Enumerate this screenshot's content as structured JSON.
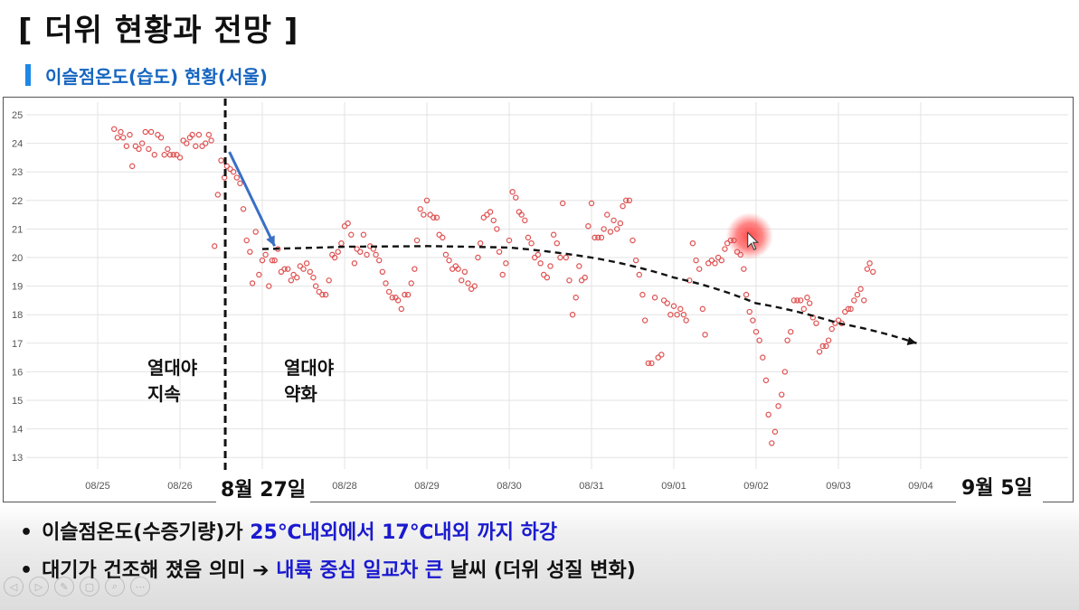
{
  "title": "[ 더위 현황과 전망 ]",
  "subtitle": "이슬점온도(습도) 현황(서울)",
  "chart_data": {
    "type": "scatter",
    "x_ticks": [
      "08/25",
      "08/26",
      "08/27",
      "08/28",
      "08/29",
      "08/30",
      "08/31",
      "09/01",
      "09/02",
      "09/03",
      "09/04"
    ],
    "y_ticks": [
      13,
      14,
      15,
      16,
      17,
      18,
      19,
      20,
      21,
      22,
      23,
      24,
      25
    ],
    "ylim": [
      12.6,
      25.3
    ],
    "xlim": [
      -0.7,
      10.1
    ],
    "grid": true,
    "marker_color": "#e05050",
    "series": [
      {
        "points": [
          [
            0.2,
            24.5
          ],
          [
            0.24,
            24.2
          ],
          [
            0.28,
            24.4
          ],
          [
            0.31,
            24.2
          ],
          [
            0.35,
            23.9
          ],
          [
            0.39,
            24.3
          ],
          [
            0.42,
            23.2
          ],
          [
            0.46,
            23.9
          ],
          [
            0.5,
            23.8
          ],
          [
            0.54,
            24.0
          ],
          [
            0.58,
            24.4
          ],
          [
            0.62,
            23.8
          ],
          [
            0.65,
            24.4
          ],
          [
            0.69,
            23.6
          ],
          [
            0.73,
            24.3
          ],
          [
            0.77,
            24.2
          ],
          [
            0.81,
            23.6
          ],
          [
            0.85,
            23.8
          ],
          [
            0.88,
            23.6
          ],
          [
            0.92,
            23.6
          ],
          [
            0.96,
            23.6
          ],
          [
            1.0,
            23.5
          ],
          [
            1.04,
            24.1
          ],
          [
            1.08,
            24.0
          ],
          [
            1.12,
            24.2
          ],
          [
            1.15,
            24.3
          ],
          [
            1.19,
            23.9
          ],
          [
            1.23,
            24.3
          ],
          [
            1.27,
            23.9
          ],
          [
            1.31,
            24.0
          ],
          [
            1.35,
            24.3
          ],
          [
            1.38,
            24.1
          ],
          [
            1.42,
            20.4
          ],
          [
            1.46,
            22.2
          ],
          [
            1.5,
            23.4
          ],
          [
            1.54,
            22.8
          ],
          [
            1.57,
            23.2
          ],
          [
            1.61,
            23.1
          ],
          [
            1.65,
            23.0
          ],
          [
            1.69,
            22.8
          ],
          [
            1.73,
            22.6
          ],
          [
            1.77,
            21.7
          ],
          [
            1.81,
            20.6
          ],
          [
            1.85,
            20.2
          ],
          [
            1.88,
            19.1
          ],
          [
            1.92,
            20.9
          ],
          [
            1.96,
            19.4
          ],
          [
            2.0,
            19.9
          ],
          [
            2.04,
            20.1
          ],
          [
            2.08,
            19.0
          ],
          [
            2.12,
            19.9
          ],
          [
            2.15,
            19.9
          ],
          [
            2.19,
            20.3
          ],
          [
            2.23,
            19.5
          ],
          [
            2.27,
            19.6
          ],
          [
            2.31,
            19.6
          ],
          [
            2.35,
            19.2
          ],
          [
            2.38,
            19.4
          ],
          [
            2.42,
            19.3
          ],
          [
            2.46,
            19.7
          ],
          [
            2.5,
            19.6
          ],
          [
            2.54,
            19.8
          ],
          [
            2.58,
            19.5
          ],
          [
            2.62,
            19.3
          ],
          [
            2.65,
            19.0
          ],
          [
            2.69,
            18.8
          ],
          [
            2.73,
            18.7
          ],
          [
            2.77,
            18.7
          ],
          [
            2.81,
            19.2
          ],
          [
            2.85,
            20.1
          ],
          [
            2.88,
            20.0
          ],
          [
            2.92,
            20.2
          ],
          [
            2.96,
            20.5
          ],
          [
            3.0,
            21.1
          ],
          [
            3.04,
            21.2
          ],
          [
            3.08,
            20.8
          ],
          [
            3.12,
            19.8
          ],
          [
            3.15,
            20.3
          ],
          [
            3.19,
            20.2
          ],
          [
            3.23,
            20.8
          ],
          [
            3.27,
            20.1
          ],
          [
            3.31,
            20.4
          ],
          [
            3.35,
            20.3
          ],
          [
            3.38,
            20.1
          ],
          [
            3.42,
            19.9
          ],
          [
            3.46,
            19.5
          ],
          [
            3.5,
            19.1
          ],
          [
            3.54,
            18.8
          ],
          [
            3.58,
            18.6
          ],
          [
            3.62,
            18.6
          ],
          [
            3.65,
            18.5
          ],
          [
            3.69,
            18.2
          ],
          [
            3.73,
            18.7
          ],
          [
            3.77,
            18.7
          ],
          [
            3.81,
            19.1
          ],
          [
            3.85,
            19.6
          ],
          [
            3.88,
            20.6
          ],
          [
            3.92,
            21.7
          ],
          [
            3.96,
            21.5
          ],
          [
            4.0,
            22.0
          ],
          [
            4.04,
            21.5
          ],
          [
            4.08,
            21.4
          ],
          [
            4.12,
            21.4
          ],
          [
            4.15,
            20.8
          ],
          [
            4.19,
            20.7
          ],
          [
            4.23,
            20.1
          ],
          [
            4.27,
            19.9
          ],
          [
            4.31,
            19.6
          ],
          [
            4.35,
            19.7
          ],
          [
            4.38,
            19.6
          ],
          [
            4.42,
            19.2
          ],
          [
            4.46,
            19.5
          ],
          [
            4.5,
            19.1
          ],
          [
            4.54,
            18.9
          ],
          [
            4.58,
            19.0
          ],
          [
            4.62,
            20.0
          ],
          [
            4.65,
            20.5
          ],
          [
            4.69,
            21.4
          ],
          [
            4.73,
            21.5
          ],
          [
            4.77,
            21.6
          ],
          [
            4.81,
            21.3
          ],
          [
            4.85,
            21.0
          ],
          [
            4.88,
            20.2
          ],
          [
            4.92,
            19.4
          ],
          [
            4.96,
            19.8
          ],
          [
            5.0,
            20.6
          ],
          [
            5.04,
            22.3
          ],
          [
            5.08,
            22.1
          ],
          [
            5.12,
            21.6
          ],
          [
            5.15,
            21.5
          ],
          [
            5.19,
            21.3
          ],
          [
            5.23,
            20.7
          ],
          [
            5.27,
            20.5
          ],
          [
            5.31,
            20.0
          ],
          [
            5.35,
            20.1
          ],
          [
            5.38,
            19.8
          ],
          [
            5.42,
            19.4
          ],
          [
            5.46,
            19.3
          ],
          [
            5.5,
            19.7
          ],
          [
            5.54,
            20.8
          ],
          [
            5.58,
            20.5
          ],
          [
            5.62,
            20.0
          ],
          [
            5.65,
            21.9
          ],
          [
            5.69,
            20.0
          ],
          [
            5.73,
            19.2
          ],
          [
            5.77,
            18.0
          ],
          [
            5.81,
            18.6
          ],
          [
            5.85,
            19.7
          ],
          [
            5.88,
            19.2
          ],
          [
            5.92,
            19.3
          ],
          [
            5.96,
            21.1
          ],
          [
            6.0,
            21.9
          ],
          [
            6.04,
            20.7
          ],
          [
            6.08,
            20.7
          ],
          [
            6.12,
            20.7
          ],
          [
            6.15,
            21.0
          ],
          [
            6.19,
            21.5
          ],
          [
            6.23,
            20.9
          ],
          [
            6.27,
            21.3
          ],
          [
            6.31,
            21.0
          ],
          [
            6.35,
            21.2
          ],
          [
            6.38,
            21.8
          ],
          [
            6.42,
            22.0
          ],
          [
            6.46,
            22.0
          ],
          [
            6.5,
            20.6
          ],
          [
            6.54,
            19.9
          ],
          [
            6.58,
            19.4
          ],
          [
            6.62,
            18.7
          ],
          [
            6.65,
            17.8
          ],
          [
            6.69,
            16.3
          ],
          [
            6.73,
            16.3
          ],
          [
            6.77,
            18.6
          ],
          [
            6.81,
            16.5
          ],
          [
            6.85,
            16.6
          ],
          [
            6.88,
            18.5
          ],
          [
            6.92,
            18.4
          ],
          [
            6.96,
            18.0
          ],
          [
            7.0,
            18.3
          ],
          [
            7.04,
            18.0
          ],
          [
            7.08,
            18.2
          ],
          [
            7.12,
            18.0
          ],
          [
            7.15,
            17.8
          ],
          [
            7.19,
            19.2
          ],
          [
            7.23,
            20.5
          ],
          [
            7.27,
            19.9
          ],
          [
            7.31,
            19.6
          ],
          [
            7.35,
            18.2
          ],
          [
            7.38,
            17.3
          ],
          [
            7.42,
            19.8
          ],
          [
            7.46,
            19.9
          ],
          [
            7.5,
            19.8
          ],
          [
            7.54,
            20.0
          ],
          [
            7.58,
            19.9
          ],
          [
            7.62,
            20.3
          ],
          [
            7.65,
            20.5
          ],
          [
            7.69,
            20.6
          ],
          [
            7.73,
            20.6
          ],
          [
            7.77,
            20.2
          ],
          [
            7.81,
            20.1
          ],
          [
            7.85,
            19.6
          ],
          [
            7.88,
            18.7
          ],
          [
            7.92,
            18.1
          ],
          [
            7.96,
            17.8
          ],
          [
            8.0,
            17.4
          ],
          [
            8.04,
            17.1
          ],
          [
            8.08,
            16.5
          ],
          [
            8.12,
            15.7
          ],
          [
            8.15,
            14.5
          ],
          [
            8.19,
            13.5
          ],
          [
            8.23,
            13.9
          ],
          [
            8.27,
            14.8
          ],
          [
            8.31,
            15.2
          ],
          [
            8.35,
            16.0
          ],
          [
            8.38,
            17.1
          ],
          [
            8.42,
            17.4
          ],
          [
            8.46,
            18.5
          ],
          [
            8.5,
            18.5
          ],
          [
            8.54,
            18.5
          ],
          [
            8.58,
            18.2
          ],
          [
            8.62,
            18.6
          ],
          [
            8.65,
            18.4
          ],
          [
            8.69,
            17.9
          ],
          [
            8.73,
            17.7
          ],
          [
            8.77,
            16.7
          ],
          [
            8.81,
            16.9
          ],
          [
            8.85,
            16.9
          ],
          [
            8.88,
            17.1
          ],
          [
            8.92,
            17.5
          ],
          [
            8.96,
            17.7
          ],
          [
            9.0,
            17.8
          ],
          [
            9.04,
            17.7
          ],
          [
            9.08,
            18.1
          ],
          [
            9.12,
            18.2
          ],
          [
            9.15,
            18.2
          ],
          [
            9.19,
            18.5
          ],
          [
            9.23,
            18.7
          ],
          [
            9.27,
            18.9
          ],
          [
            9.31,
            18.5
          ],
          [
            9.35,
            19.6
          ],
          [
            9.38,
            19.8
          ],
          [
            9.42,
            19.5
          ]
        ]
      }
    ],
    "trend": {
      "type": "dashed-curve-arrow",
      "points": [
        [
          2.0,
          20.3
        ],
        [
          3.0,
          20.38
        ],
        [
          4.0,
          20.4
        ],
        [
          5.0,
          20.35
        ],
        [
          6.0,
          20.0
        ],
        [
          7.0,
          19.3
        ],
        [
          8.0,
          18.4
        ],
        [
          9.0,
          17.7
        ],
        [
          9.95,
          17.0
        ]
      ]
    },
    "separator_x": 1.55,
    "arrow": {
      "from": [
        1.6,
        23.7
      ],
      "to": [
        2.15,
        20.4
      ]
    },
    "highlight": [
      7.92,
      20.75
    ],
    "annotations": {
      "left": [
        "열대야",
        "지속"
      ],
      "right": [
        "열대야",
        "약화"
      ],
      "date_start": "8월 27일",
      "date_end": "9월 5일"
    }
  },
  "bullets": [
    {
      "pre": "이슬점온도(수증기량)가 ",
      "hl": "25℃내외에서 17℃내외 까지 하강",
      "post": ""
    },
    {
      "pre": "대기가 건조해 졌음 의미 ➔ ",
      "hl": "내륙 중심 일교차 큰",
      "post": " 날씨 (더위 성질 변화)"
    }
  ],
  "bullet_dot": "•"
}
